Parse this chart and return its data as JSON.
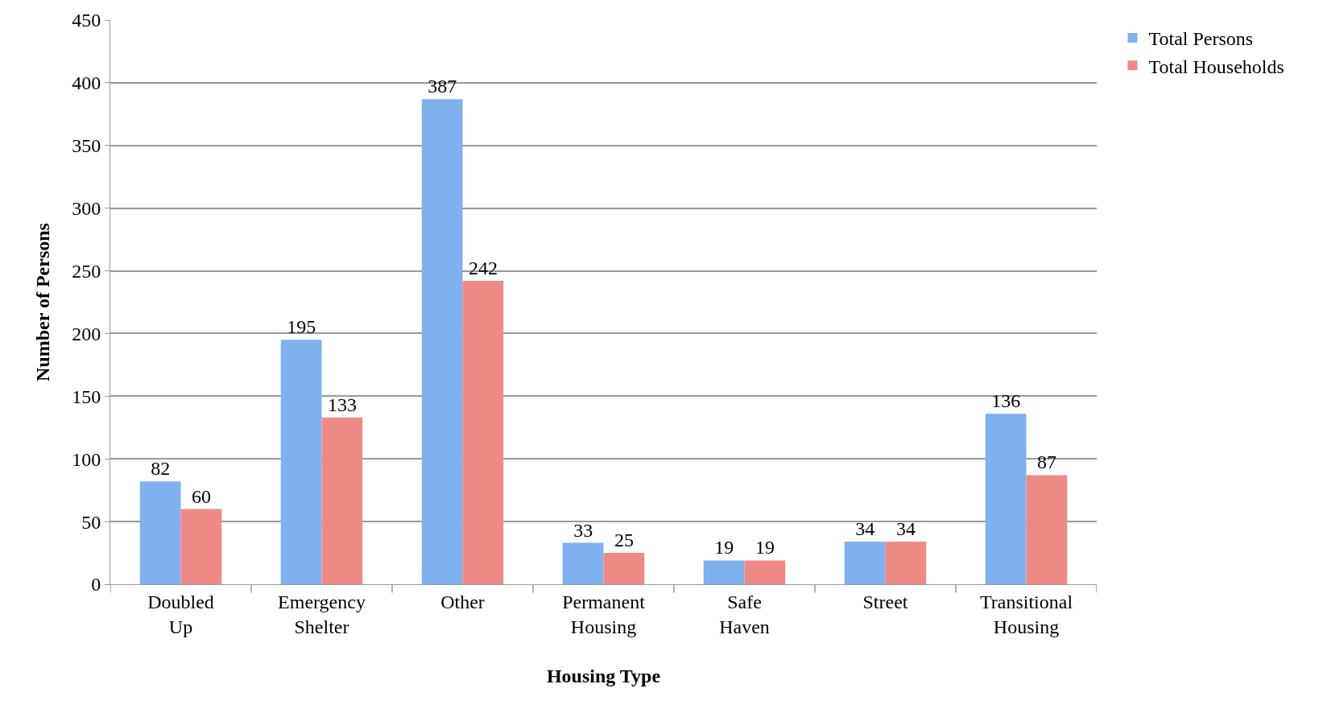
{
  "chart_data": {
    "type": "bar",
    "xlabel": "Housing Type",
    "ylabel": "Number of Persons",
    "categories": [
      "Doubled Up",
      "Emergency Shelter",
      "Other",
      "Permanent Housing",
      "Safe Haven",
      "Street",
      "Transitional Housing"
    ],
    "series": [
      {
        "name": "Total Persons",
        "color": "#7fb1ee",
        "values": [
          82,
          195,
          387,
          33,
          19,
          34,
          136
        ]
      },
      {
        "name": "Total Households",
        "color": "#ee8a85",
        "values": [
          60,
          133,
          242,
          25,
          19,
          34,
          87
        ]
      }
    ],
    "ylim": [
      0,
      450
    ],
    "yticks": [
      0,
      50,
      100,
      150,
      200,
      250,
      300,
      350,
      400,
      450
    ],
    "grid": "y",
    "legend": "top right",
    "data_labels": true
  }
}
